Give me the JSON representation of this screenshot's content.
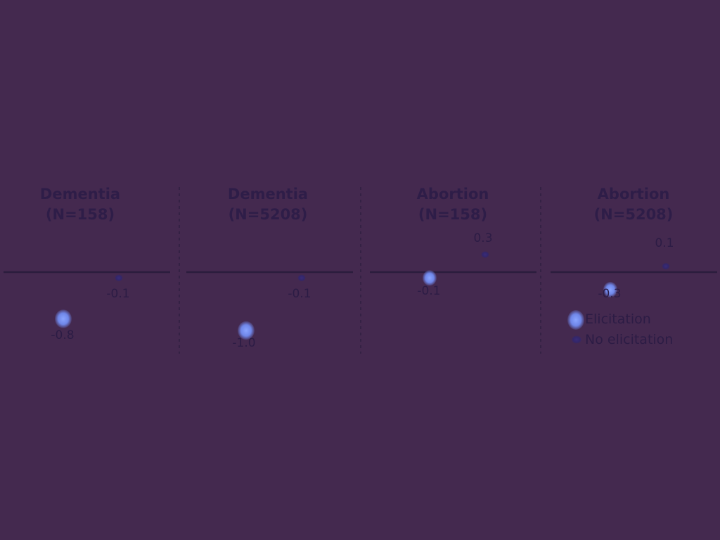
{
  "colors": {
    "background": "#44294f",
    "elicitation": "#7a92f0",
    "no_elicitation": "#35276a",
    "zero_line": "#2b1c3d",
    "divider": "#2f1f40",
    "text": "#2c1c45"
  },
  "legend": {
    "elicitation": "Elicitation",
    "no_elicitation": "No elicitation"
  },
  "chart_data": {
    "type": "scatter",
    "grid": false,
    "legend_position": "bottom-right",
    "series_names": [
      "Elicitation",
      "No elicitation"
    ],
    "panels": [
      {
        "title_line1": "Dementia",
        "title_line2": "(N=158)",
        "points": [
          {
            "series": "Elicitation",
            "value": -0.8,
            "label": "-0.8"
          },
          {
            "series": "No elicitation",
            "value": -0.1,
            "label": "-0.1"
          }
        ]
      },
      {
        "title_line1": "Dementia",
        "title_line2": "(N=5208)",
        "points": [
          {
            "series": "Elicitation",
            "value": -1.0,
            "label": "-1.0"
          },
          {
            "series": "No elicitation",
            "value": -0.1,
            "label": "-0.1"
          }
        ]
      },
      {
        "title_line1": "Abortion",
        "title_line2": "(N=158)",
        "points": [
          {
            "series": "Elicitation",
            "value": -0.1,
            "label": "-0.1"
          },
          {
            "series": "No elicitation",
            "value": 0.3,
            "label": "0.3"
          }
        ]
      },
      {
        "title_line1": "Abortion",
        "title_line2": "(N=5208)",
        "points": [
          {
            "series": "Elicitation",
            "value": -0.3,
            "label": "-0.3"
          },
          {
            "series": "No elicitation",
            "value": 0.1,
            "label": "0.1"
          }
        ]
      }
    ]
  }
}
